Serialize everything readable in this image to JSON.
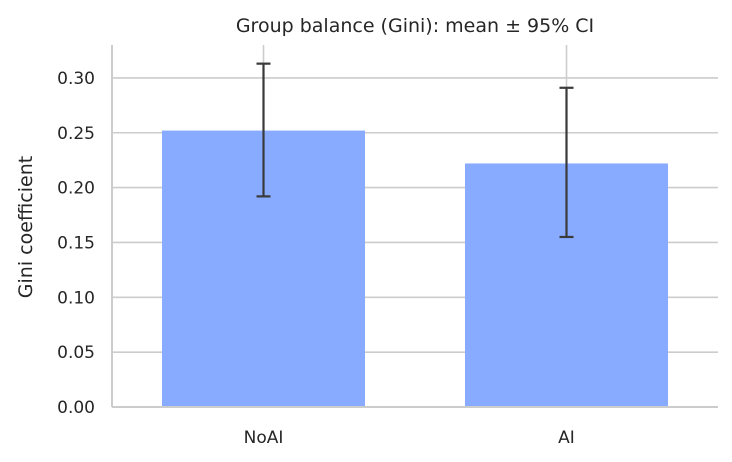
{
  "chart_data": {
    "type": "bar",
    "title": "Group balance (Gini): mean ± 95% CI",
    "xlabel": "",
    "ylabel": "Gini coefficient",
    "categories": [
      "NoAI",
      "AI"
    ],
    "values": [
      0.252,
      0.222
    ],
    "ci_low": [
      0.192,
      0.155
    ],
    "ci_high": [
      0.313,
      0.291
    ],
    "ylim": [
      0,
      0.33
    ],
    "yticks": [
      "0.00",
      "0.05",
      "0.10",
      "0.15",
      "0.20",
      "0.25",
      "0.30"
    ],
    "grid": true,
    "bar_color": "#88aaff",
    "grid_color": "#cccccc",
    "errorbar_color": "#3a3a3a",
    "text_color": "#262626"
  }
}
